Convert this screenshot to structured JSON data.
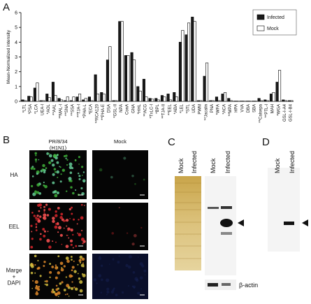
{
  "chart_data": {
    "type": "bar",
    "y_axis_label": "Mean-Normalized intensity",
    "categories": [
      "*LTL",
      "*PSA",
      "*LCA",
      "UEA-I",
      "*AOL",
      "**AAL",
      "**MAL-I",
      "**SNA",
      "**SSA",
      "**TJA-I",
      "*PHA-L",
      "*ECA",
      "**RCA120",
      "**PHA-E",
      "DSA",
      "*GSL-II",
      "NPA",
      "ConA",
      "GNA",
      "*HHL",
      "**ACG",
      "*TxLC-I",
      "*BPL",
      "**TJA-II",
      "**EEL",
      "*ABA",
      "*LEL",
      "*STL",
      "UDA",
      "PWM",
      "**Jacalin",
      "PNA",
      "*WFA",
      "*ACA",
      "**MPA",
      "HPA",
      "VVA",
      "DBA",
      "SBA",
      "**Calsepa",
      "**PTL-I",
      "MAH",
      "*WGA",
      "GSL-I-A4",
      "GSL-I-B4"
    ],
    "series": [
      {
        "name": "Infected",
        "color": "#1a1a1a",
        "values": [
          0.1,
          0.35,
          0.9,
          0.05,
          0.5,
          1.3,
          0.2,
          0.05,
          0.05,
          0.3,
          0.1,
          0.3,
          1.8,
          0.6,
          2.8,
          0.05,
          5.4,
          3.1,
          3.3,
          1.0,
          1.5,
          0.2,
          0.2,
          0.4,
          0.5,
          0.6,
          4.0,
          4.5,
          5.7,
          0.05,
          1.7,
          0.05,
          0.3,
          0.5,
          0.2,
          0.02,
          0.02,
          0.02,
          0.02,
          0.2,
          0.1,
          0.5,
          1.3,
          0.1,
          0.05
        ]
      },
      {
        "name": "Mock",
        "color": "#ffffff",
        "values": [
          0.05,
          0.3,
          1.25,
          0.05,
          0.25,
          0.4,
          0.1,
          0.3,
          0.3,
          0.5,
          0.2,
          0.05,
          0.5,
          0.5,
          3.7,
          0.05,
          5.4,
          3.1,
          2.8,
          0.7,
          0.3,
          0.15,
          0.1,
          0.3,
          0.1,
          0.3,
          4.8,
          5.3,
          5.4,
          0.05,
          2.6,
          0.05,
          0.05,
          0.6,
          0.05,
          0.02,
          0.02,
          0.02,
          0.02,
          0.05,
          0.05,
          0.6,
          2.1,
          0.05,
          0.05
        ]
      }
    ],
    "ylim": [
      0,
      6
    ],
    "yticks": [
      0,
      1,
      2,
      3,
      4,
      5,
      6
    ],
    "legend": "top-right"
  },
  "panel_labels": [
    "A",
    "B",
    "C",
    "D"
  ],
  "panel_b": {
    "columns": [
      [
        "PR/8/34",
        "(H1N1)"
      ],
      [
        "Mock"
      ]
    ],
    "rows": [
      [
        "HA"
      ],
      [
        "EEL"
      ],
      [
        "Marge",
        "+",
        "DAPI"
      ]
    ]
  },
  "panel_c": {
    "lanes_stain": [
      "Mock",
      "Infected"
    ],
    "lanes_blot": [
      "Mock",
      "Infected"
    ],
    "loading_control": "β-actin"
  },
  "panel_d": {
    "lanes": [
      "Mock",
      "Infected"
    ]
  }
}
